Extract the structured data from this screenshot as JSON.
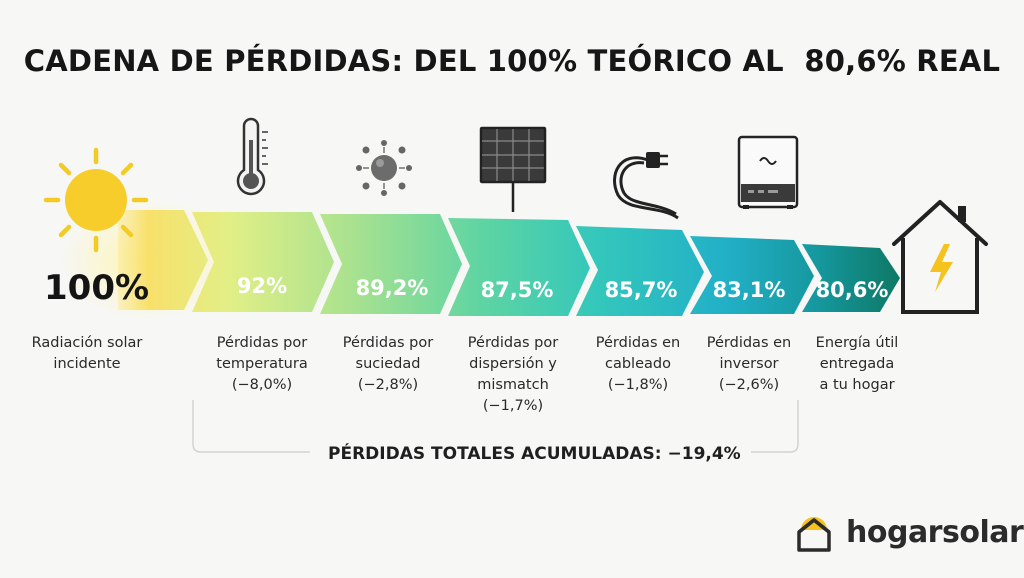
{
  "title": "CADENA DE PÉRDIDAS: DEL 100% TEÓRICO AL  80,6% REAL",
  "start": {
    "value": "100%",
    "label_lines": [
      "Radiación solar",
      "incidente"
    ]
  },
  "steps": [
    {
      "value": "92%",
      "label_lines": [
        "Pérdidas por",
        "temperatura",
        "(−8,0%)"
      ],
      "icon": "thermometer-icon"
    },
    {
      "value": "89,2%",
      "label_lines": [
        "Pérdidas por",
        "suciedad",
        "(−2,8%)"
      ],
      "icon": "dirt-particles-icon"
    },
    {
      "value": "87,5%",
      "label_lines": [
        "Pérdidas por",
        "dispersión y",
        "mismatch",
        "(−1,7%)"
      ],
      "icon": "solar-panel-icon"
    },
    {
      "value": "85,7%",
      "label_lines": [
        "Pérdidas en",
        "cableado",
        "(−1,8%)"
      ],
      "icon": "cable-plug-icon"
    },
    {
      "value": "83,1%",
      "label_lines": [
        "Pérdidas en",
        "inversor",
        "(−2,6%)"
      ],
      "icon": "inverter-icon"
    },
    {
      "value": "80,6%",
      "label_lines": [
        "Energía útil",
        "entregada",
        "a tu hogar"
      ],
      "icon": "house-lightning-icon"
    }
  ],
  "total_losses": "PÉRDIDAS TOTALES ACUMULADAS: −19,4%",
  "brand": {
    "name": "hogarsolar"
  },
  "colors": {
    "sun": "#f6cd2a",
    "arrow_gradient": [
      "#dfee8a",
      "#a6e08e",
      "#57d2a4",
      "#2fc3bd",
      "#22aec6",
      "#139a9e",
      "#0f7c6a"
    ],
    "house_bolt": "#f6c21d",
    "text": "#1a1a1a"
  }
}
